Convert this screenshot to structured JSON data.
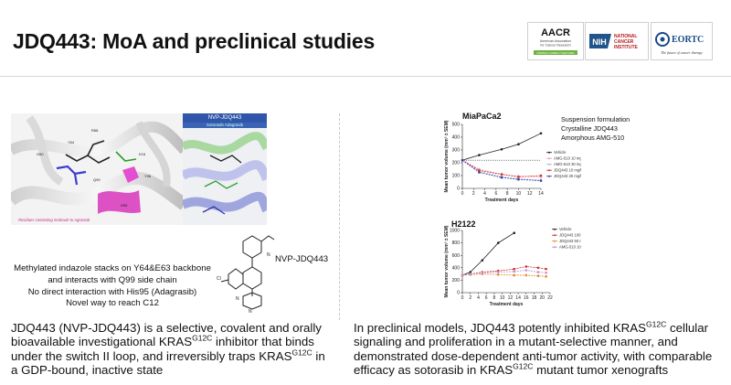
{
  "slide": {
    "title": "JDQ443: MoA and preclinical studies"
  },
  "logos": {
    "aacr": {
      "main": "AACR",
      "sub1": "American Association",
      "sub2": "for Cancer Research",
      "tagline": "FINDING CURES TOGETHER"
    },
    "nih": {
      "badge": "NIH",
      "line1": "NATIONAL",
      "line2": "CANCER",
      "line3": "INSTITUTE"
    },
    "eortc": {
      "main": "EORTC",
      "tagline": "The future of cancer therapy"
    }
  },
  "left": {
    "inset_title": "NVP-JDQ443",
    "inset_subtitle": "Sotorasib Adagrasib",
    "residues_note": "Residues contacting molecule to Agrastab",
    "caption_lines": [
      "Methylated indazole stacks on Y64&E63 backbone",
      "and interacts with Q99 side chain",
      "No direct interaction with His95 (Adagrasib)",
      "Novel way to reach C12"
    ],
    "structure_label": "NVP-JDQ443",
    "paragraph": {
      "p1": "JDQ443 (NVP-JDQ443) is a selective, covalent and orally bioavailable investigational KRAS",
      "sup1": "G12C",
      "p2": " inhibitor that binds under the switch II loop, and irreversibly traps KRAS",
      "sup2": "G12C",
      "p3": " in a GDP-bound, inactive state"
    }
  },
  "right": {
    "formulation": [
      "Suspension formulation",
      "Crystalline JDQ443",
      "Amorphous AMG-510"
    ],
    "paragraph": {
      "p1": "In preclinical models, JDQ443 potently inhibited KRAS",
      "sup1": "G12C",
      "p2": " cellular signaling and proliferation in a mutant-selective manner, and demonstrated dose-dependent anti-tumor activity, with comparable efficacy as sotorasib in KRAS",
      "sup2": "G12C",
      "p3": " mutant tumor xenografts"
    }
  },
  "chart_data": [
    {
      "type": "line",
      "title": "MiaPaCa2",
      "xlabel": "Treatment days",
      "ylabel": "Mean tumor volume (mm³ ± SEM)",
      "xlim": [
        0,
        14
      ],
      "ylim": [
        0,
        500
      ],
      "x_ticks": [
        0,
        2,
        4,
        6,
        8,
        10,
        12,
        14
      ],
      "y_ticks": [
        0,
        100,
        200,
        300,
        400,
        500
      ],
      "reference_line": 220,
      "series": [
        {
          "name": "Vehicle",
          "color": "#222222",
          "x": [
            0,
            3,
            7,
            10,
            14
          ],
          "y": [
            220,
            260,
            305,
            345,
            430
          ]
        },
        {
          "name": "AMG-510 10 mg/kg",
          "color": "#e9a0b0",
          "x": [
            0,
            3,
            7,
            10,
            14
          ],
          "y": [
            220,
            150,
            110,
            95,
            90
          ]
        },
        {
          "name": "AMG-510 30 mg/kg",
          "color": "#a9b7e6",
          "x": [
            0,
            3,
            7,
            10,
            14
          ],
          "y": [
            220,
            135,
            90,
            75,
            65
          ]
        },
        {
          "name": "JDQ443 10 mg/kg",
          "color": "#d03030",
          "x": [
            0,
            3,
            7,
            10,
            14
          ],
          "y": [
            220,
            140,
            110,
            90,
            100
          ]
        },
        {
          "name": "JDQ443 30 mg/kg",
          "color": "#3a3f9f",
          "x": [
            0,
            3,
            7,
            10,
            14
          ],
          "y": [
            220,
            125,
            85,
            70,
            60
          ]
        }
      ],
      "legend": "right"
    },
    {
      "type": "line",
      "title": "H2122",
      "xlabel": "Treatment days",
      "ylabel": "Mean tumor volume (mm³ ± SEM)",
      "xlim": [
        0,
        22
      ],
      "ylim": [
        0,
        1000
      ],
      "x_ticks": [
        0,
        2,
        4,
        6,
        8,
        10,
        12,
        14,
        16,
        18,
        20,
        22
      ],
      "y_ticks": [
        0,
        200,
        400,
        600,
        800,
        1000
      ],
      "series": [
        {
          "name": "Vehicle",
          "color": "#222222",
          "x": [
            0,
            2,
            5,
            9,
            13
          ],
          "y": [
            280,
            330,
            520,
            800,
            960
          ]
        },
        {
          "name": "JDQ443 100 mg/kg qd",
          "color": "#d03030",
          "x": [
            0,
            2,
            5,
            9,
            13,
            16,
            19,
            21
          ],
          "y": [
            280,
            300,
            330,
            350,
            380,
            420,
            400,
            380
          ]
        },
        {
          "name": "JDQ443 50 mg/kg bid",
          "color": "#e08a30",
          "x": [
            0,
            2,
            5,
            9,
            13,
            16,
            19,
            21
          ],
          "y": [
            280,
            290,
            300,
            290,
            280,
            280,
            270,
            260
          ]
        },
        {
          "name": "AMG-510 100 mg/kg qd",
          "color": "#c090d0",
          "x": [
            0,
            2,
            5,
            9,
            13,
            16,
            19,
            21
          ],
          "y": [
            280,
            300,
            320,
            330,
            340,
            360,
            330,
            320
          ]
        }
      ],
      "legend": "right"
    }
  ]
}
